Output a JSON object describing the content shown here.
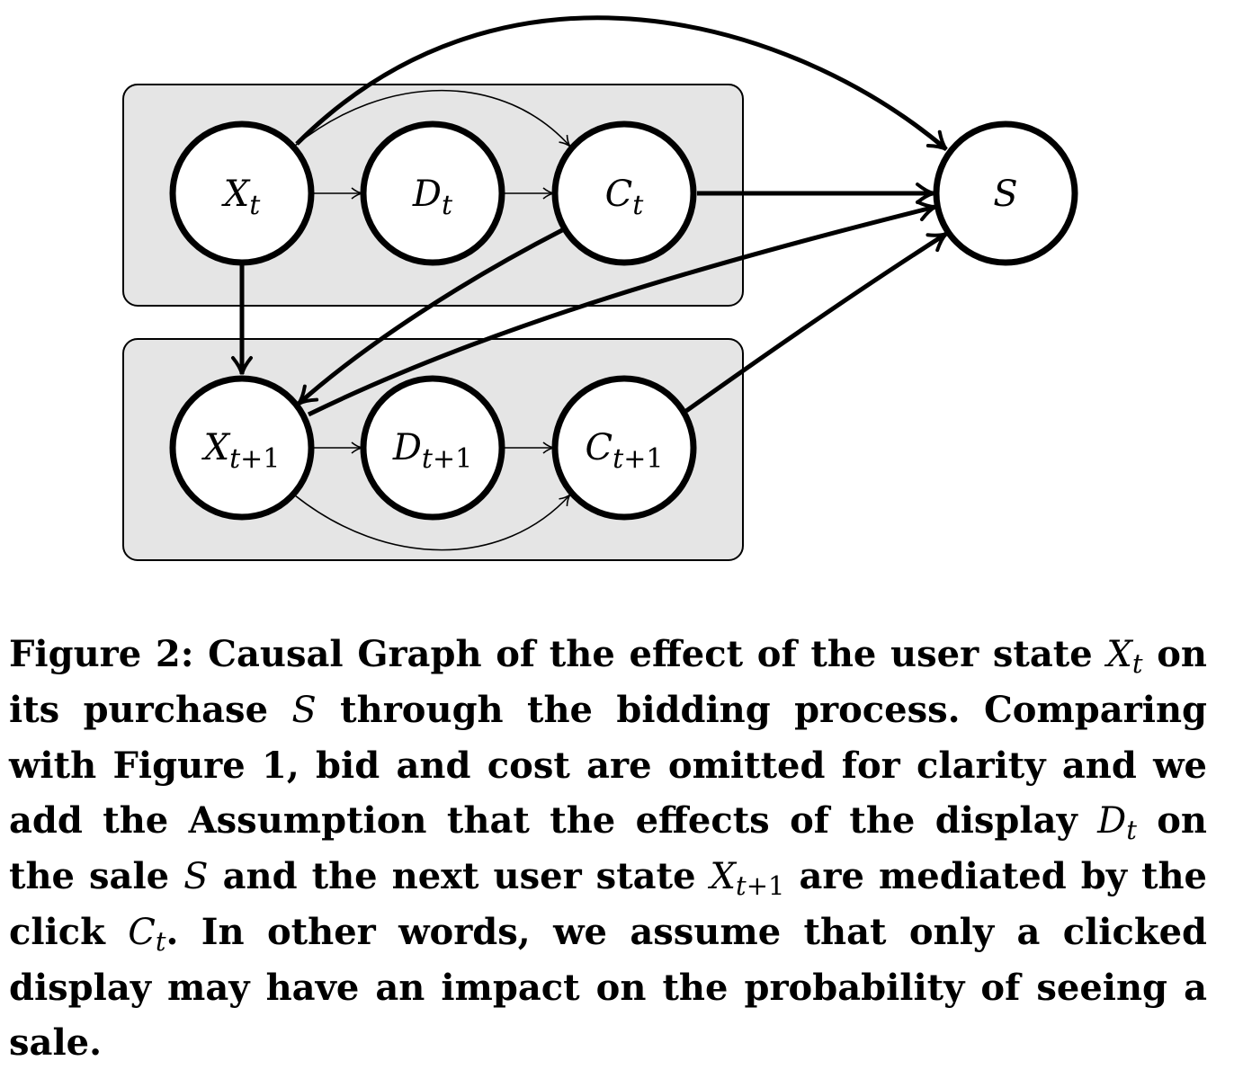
{
  "diagram": {
    "nodes": {
      "x_t": {
        "main": "X",
        "sub": "t",
        "sub_suffix": ""
      },
      "d_t": {
        "main": "D",
        "sub": "t",
        "sub_suffix": ""
      },
      "c_t": {
        "main": "C",
        "sub": "t",
        "sub_suffix": ""
      },
      "x_t1": {
        "main": "X",
        "sub": "t",
        "sub_suffix": "+1"
      },
      "d_t1": {
        "main": "D",
        "sub": "t",
        "sub_suffix": "+1"
      },
      "c_t1": {
        "main": "C",
        "sub": "t",
        "sub_suffix": "+1"
      },
      "s": {
        "main": "S",
        "sub": "",
        "sub_suffix": ""
      }
    },
    "edges": [
      {
        "from": "x_t",
        "to": "d_t",
        "weight": "thin"
      },
      {
        "from": "d_t",
        "to": "c_t",
        "weight": "thin"
      },
      {
        "from": "x_t",
        "to": "c_t",
        "weight": "thin"
      },
      {
        "from": "x_t",
        "to": "s",
        "weight": "thick"
      },
      {
        "from": "c_t",
        "to": "s",
        "weight": "thick"
      },
      {
        "from": "x_t",
        "to": "x_t1",
        "weight": "thick"
      },
      {
        "from": "c_t",
        "to": "x_t1",
        "weight": "thick"
      },
      {
        "from": "x_t1",
        "to": "s",
        "weight": "thick"
      },
      {
        "from": "c_t1",
        "to": "s",
        "weight": "thick"
      },
      {
        "from": "x_t1",
        "to": "d_t1",
        "weight": "thin"
      },
      {
        "from": "d_t1",
        "to": "c_t1",
        "weight": "thin"
      },
      {
        "from": "x_t1",
        "to": "c_t1",
        "weight": "thin"
      }
    ]
  },
  "caption": {
    "l1a": "Figure 2: Causal Graph of the effect of the user state ",
    "l1_x": "X",
    "l1_t": "t",
    "l1b": " on its purchase ",
    "l1_s": "S",
    "l1c": " through the bidding process. Comparing with Figure 1, bid and cost are omitted for clarity and we add the Assumption that the effects of the display ",
    "l1_d": "D",
    "l1_dt": "t",
    "l1d": " on the sale ",
    "l1_s2": "S",
    "l1e": " and the next user state ",
    "l1_x2": "X",
    "l1_x2t": "t",
    "l1_x2p": "+1",
    "l1f": " are mediated by the click ",
    "l1_c": "C",
    "l1_ct": "t",
    "l1g": ". In other words, we assume that only a clicked display may have an impact on the probability of seeing a sale."
  }
}
